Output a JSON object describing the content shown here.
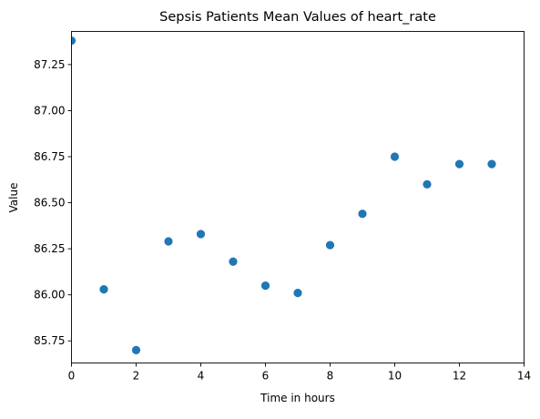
{
  "chart_data": {
    "type": "scatter",
    "title": "Sepsis Patients Mean Values of heart_rate",
    "xlabel": "Time in hours",
    "ylabel": "Value",
    "xlim": [
      0,
      14
    ],
    "ylim": [
      85.63,
      87.43
    ],
    "x_ticks": [
      0,
      2,
      4,
      6,
      8,
      10,
      12,
      14
    ],
    "x_tick_labels": [
      "0",
      "2",
      "4",
      "6",
      "8",
      "10",
      "12",
      "14"
    ],
    "y_ticks": [
      85.75,
      86.0,
      86.25,
      86.5,
      86.75,
      87.0,
      87.25
    ],
    "y_tick_labels": [
      "85.75",
      "86.00",
      "86.25",
      "86.50",
      "86.75",
      "87.00",
      "87.25"
    ],
    "grid": false,
    "marker_color": "#1f77b4",
    "series": [
      {
        "x": [
          0,
          1,
          2,
          3,
          4,
          5,
          6,
          7,
          8,
          9,
          10,
          11,
          12,
          13
        ],
        "y": [
          87.38,
          86.03,
          85.7,
          86.29,
          86.33,
          86.18,
          86.05,
          86.01,
          86.27,
          86.44,
          86.75,
          86.6,
          86.71,
          86.71
        ]
      }
    ]
  }
}
